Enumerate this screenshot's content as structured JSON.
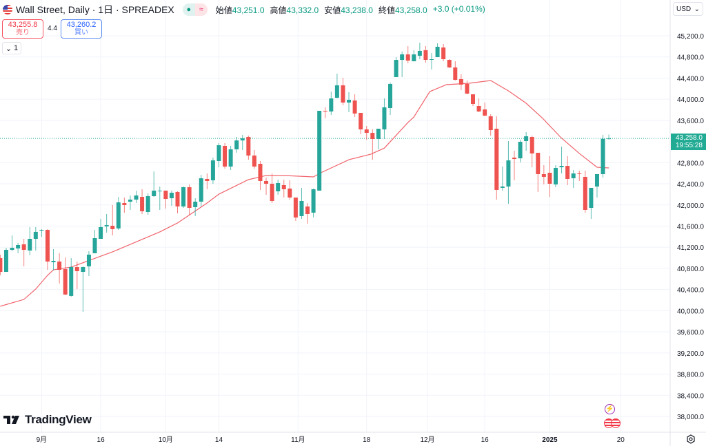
{
  "header": {
    "symbol_title": "Wall Street, Daily · 1日 · SPREADEX",
    "status_dot": "●",
    "status_wave": "≈",
    "ohlc": [
      {
        "label": "始値",
        "value": "43,251.0"
      },
      {
        "label": "高値",
        "value": "43,332.0"
      },
      {
        "label": "安値",
        "value": "43,238.0"
      },
      {
        "label": "終値",
        "value": "43,258.0"
      }
    ],
    "change": "+3.0 (+0.01%)"
  },
  "trade": {
    "sell_price": "43,255.8",
    "sell_label": "売り",
    "spread": "4.4",
    "buy_price": "43,260.2",
    "buy_label": "買い"
  },
  "collapse": {
    "icon": "⌄",
    "count": "1"
  },
  "currency": {
    "value": "USD",
    "icon": "⌄"
  },
  "last_price": {
    "price": "43,258.0",
    "countdown": "19:55:28"
  },
  "logo": "TradingView",
  "colors": {
    "up": "#26a69a",
    "down": "#ef5350",
    "ma": "#f0636b",
    "last_line": "#22ab94",
    "grid": "#f0f3fa"
  },
  "chart_data": {
    "type": "candlestick",
    "title": "Wall Street, Daily",
    "ylim": [
      37800,
      45600
    ],
    "y_ticks": [
      "45,200.0",
      "44,800.0",
      "44,400.0",
      "44,000.0",
      "43,600.0",
      "42,800.0",
      "42,400.0",
      "42,000.0",
      "41,600.0",
      "41,200.0",
      "40,800.0",
      "40,400.0",
      "40,000.0",
      "39,600.0",
      "39,200.0",
      "38,800.0",
      "38,400.0",
      "38,000.0"
    ],
    "y_tick_values": [
      45200,
      44800,
      44400,
      44000,
      43600,
      42800,
      42400,
      42000,
      41600,
      41200,
      40800,
      40400,
      40000,
      39600,
      39200,
      38800,
      38400,
      38000
    ],
    "x_ticks": [
      {
        "label": "9月",
        "index": 7,
        "bold": false
      },
      {
        "label": "16",
        "index": 17,
        "bold": false
      },
      {
        "label": "10月",
        "index": 28,
        "bold": false
      },
      {
        "label": "14",
        "index": 37,
        "bold": false
      },
      {
        "label": "11月",
        "index": 50.4,
        "bold": false
      },
      {
        "label": "18",
        "index": 62,
        "bold": false
      },
      {
        "label": "12月",
        "index": 72.3,
        "bold": false
      },
      {
        "label": "16",
        "index": 82,
        "bold": false
      },
      {
        "label": "2025",
        "index": 93,
        "bold": true
      },
      {
        "label": "20",
        "index": 105,
        "bold": false
      }
    ],
    "grid": true,
    "candles_ohlc": [
      [
        40994,
        41060,
        40669,
        40734
      ],
      [
        40734,
        41190,
        40734,
        41151
      ],
      [
        41151,
        41424,
        41125,
        41190
      ],
      [
        41177,
        41281,
        41086,
        41242
      ],
      [
        41255,
        41359,
        40838,
        41151
      ],
      [
        41138,
        41581,
        41047,
        41359
      ],
      [
        41359,
        41581,
        41138,
        41490
      ],
      [
        41515,
        41542,
        41398,
        41528
      ],
      [
        41528,
        41542,
        40773,
        40929
      ],
      [
        40916,
        41164,
        40760,
        40942
      ],
      [
        40929,
        41086,
        40513,
        40773
      ],
      [
        40786,
        41008,
        40292,
        40305
      ],
      [
        40279,
        40994,
        40266,
        40825
      ],
      [
        40825,
        40929,
        40409,
        40747
      ],
      [
        40734,
        40838,
        39980,
        40825
      ],
      [
        40838,
        41125,
        40656,
        41060
      ],
      [
        41086,
        41528,
        41086,
        41372
      ],
      [
        41359,
        41737,
        41359,
        41581
      ],
      [
        41594,
        41828,
        41476,
        41619
      ],
      [
        41606,
        41997,
        41424,
        41542
      ],
      [
        41555,
        42153,
        41528,
        42049
      ],
      [
        42036,
        42140,
        41854,
        41997
      ],
      [
        42062,
        42179,
        41906,
        42101
      ],
      [
        42101,
        42271,
        42036,
        42179
      ],
      [
        42153,
        42297,
        41828,
        41880
      ],
      [
        41867,
        42218,
        41815,
        42166
      ],
      [
        42166,
        42635,
        42153,
        42271
      ],
      [
        42271,
        42349,
        41906,
        42271
      ],
      [
        42271,
        42271,
        41932,
        42114
      ],
      [
        42127,
        42271,
        41984,
        42231
      ],
      [
        42245,
        42258,
        41841,
        41971
      ],
      [
        41971,
        42349,
        41945,
        42336
      ],
      [
        42336,
        42388,
        41815,
        41945
      ],
      [
        41958,
        42127,
        41789,
        42062
      ],
      [
        42062,
        42570,
        41971,
        42505
      ],
      [
        42492,
        42596,
        42297,
        42453
      ],
      [
        42466,
        42895,
        42401,
        42843
      ],
      [
        42830,
        43169,
        42713,
        43130
      ],
      [
        43117,
        43169,
        42687,
        42726
      ],
      [
        42726,
        43117,
        42661,
        43052
      ],
      [
        43052,
        43286,
        42987,
        43221
      ],
      [
        43221,
        43325,
        43039,
        43260
      ],
      [
        43286,
        43312,
        42856,
        42935
      ],
      [
        42935,
        43039,
        42687,
        42726
      ],
      [
        42778,
        42830,
        42284,
        42453
      ],
      [
        42453,
        42518,
        42192,
        42401
      ],
      [
        42401,
        42596,
        42036,
        42075
      ],
      [
        42258,
        42479,
        42192,
        42414
      ],
      [
        42375,
        42479,
        42140,
        42297
      ],
      [
        42310,
        42466,
        42101,
        42140
      ],
      [
        42140,
        42140,
        41698,
        41763
      ],
      [
        41789,
        42323,
        41737,
        42075
      ],
      [
        41971,
        42036,
        41646,
        41828
      ],
      [
        41854,
        42310,
        41763,
        42297
      ],
      [
        42271,
        43781,
        42271,
        43781
      ],
      [
        43781,
        43846,
        43638,
        43768
      ],
      [
        43768,
        44145,
        43703,
        44015
      ],
      [
        44028,
        44484,
        44015,
        44263
      ],
      [
        44263,
        44406,
        43885,
        43937
      ],
      [
        43937,
        44132,
        43755,
        43989
      ],
      [
        43976,
        44093,
        43664,
        43729
      ],
      [
        43742,
        43742,
        43338,
        43429
      ],
      [
        43429,
        43494,
        43234,
        43364
      ],
      [
        43364,
        43429,
        42856,
        43247
      ],
      [
        43247,
        43442,
        43052,
        43442
      ],
      [
        43429,
        44015,
        43247,
        43846
      ],
      [
        43833,
        44315,
        43703,
        44289
      ],
      [
        44419,
        44796,
        44419,
        44744
      ],
      [
        44744,
        44901,
        44419,
        44848
      ],
      [
        44848,
        45005,
        44679,
        44731
      ],
      [
        44718,
        44927,
        44718,
        44848
      ],
      [
        44822,
        45070,
        44757,
        44914
      ],
      [
        44927,
        45005,
        44692,
        44744
      ],
      [
        44757,
        44874,
        44562,
        44757
      ],
      [
        44796,
        45057,
        44796,
        44992
      ],
      [
        44979,
        45044,
        44718,
        44757
      ],
      [
        44744,
        44757,
        44588,
        44601
      ],
      [
        44601,
        44718,
        44354,
        44367
      ],
      [
        44380,
        44471,
        44171,
        44276
      ],
      [
        44289,
        44354,
        44093,
        44106
      ],
      [
        44093,
        44093,
        43872,
        43911
      ],
      [
        43872,
        44015,
        43755,
        43768
      ],
      [
        43807,
        43937,
        43677,
        43690
      ],
      [
        43677,
        43716,
        43312,
        43416
      ],
      [
        43442,
        43677,
        42101,
        42284
      ],
      [
        42323,
        42726,
        42271,
        42349
      ],
      [
        42349,
        43208,
        42023,
        42843
      ],
      [
        42895,
        43026,
        42466,
        42869
      ],
      [
        42882,
        43234,
        42804,
        43195
      ],
      [
        43208,
        43377,
        43026,
        43299
      ],
      [
        43286,
        43312,
        42713,
        42974
      ],
      [
        42987,
        42987,
        42245,
        42583
      ],
      [
        42583,
        42752,
        42388,
        42531
      ],
      [
        42609,
        42922,
        42153,
        42401
      ],
      [
        42388,
        42752,
        42336,
        42700
      ],
      [
        42713,
        43104,
        42596,
        42739
      ],
      [
        42739,
        42922,
        42375,
        42492
      ],
      [
        42505,
        42661,
        42323,
        42596
      ],
      [
        42596,
        42648,
        42453,
        42583
      ],
      [
        42531,
        42648,
        41854,
        41906
      ],
      [
        41945,
        42323,
        41737,
        42323
      ],
      [
        42349,
        42583,
        42140,
        42583
      ],
      [
        42583,
        43325,
        42518,
        43251
      ],
      [
        43251,
        43332,
        43238,
        43258
      ]
    ],
    "moving_average": [
      [
        0,
        40083
      ],
      [
        4,
        40213
      ],
      [
        6,
        40409
      ],
      [
        8,
        40669
      ],
      [
        9,
        40773
      ],
      [
        12,
        40825
      ],
      [
        19,
        41112
      ],
      [
        27,
        41490
      ],
      [
        30,
        41659
      ],
      [
        35,
        42036
      ],
      [
        37,
        42205
      ],
      [
        42,
        42479
      ],
      [
        45,
        42557
      ],
      [
        48,
        42557
      ],
      [
        53,
        42531
      ],
      [
        54.5,
        42622
      ],
      [
        59,
        42856
      ],
      [
        62.7,
        42960
      ],
      [
        65,
        43075
      ],
      [
        69,
        43560
      ],
      [
        70,
        43664
      ],
      [
        72.7,
        44145
      ],
      [
        75.5,
        44276
      ],
      [
        79.3,
        44302
      ],
      [
        83,
        44354
      ],
      [
        86,
        44158
      ],
      [
        89,
        43924
      ],
      [
        91.8,
        43638
      ],
      [
        94.9,
        43273
      ],
      [
        98,
        42974
      ],
      [
        101,
        42713
      ],
      [
        103,
        42700
      ]
    ],
    "last_price": 43258
  }
}
